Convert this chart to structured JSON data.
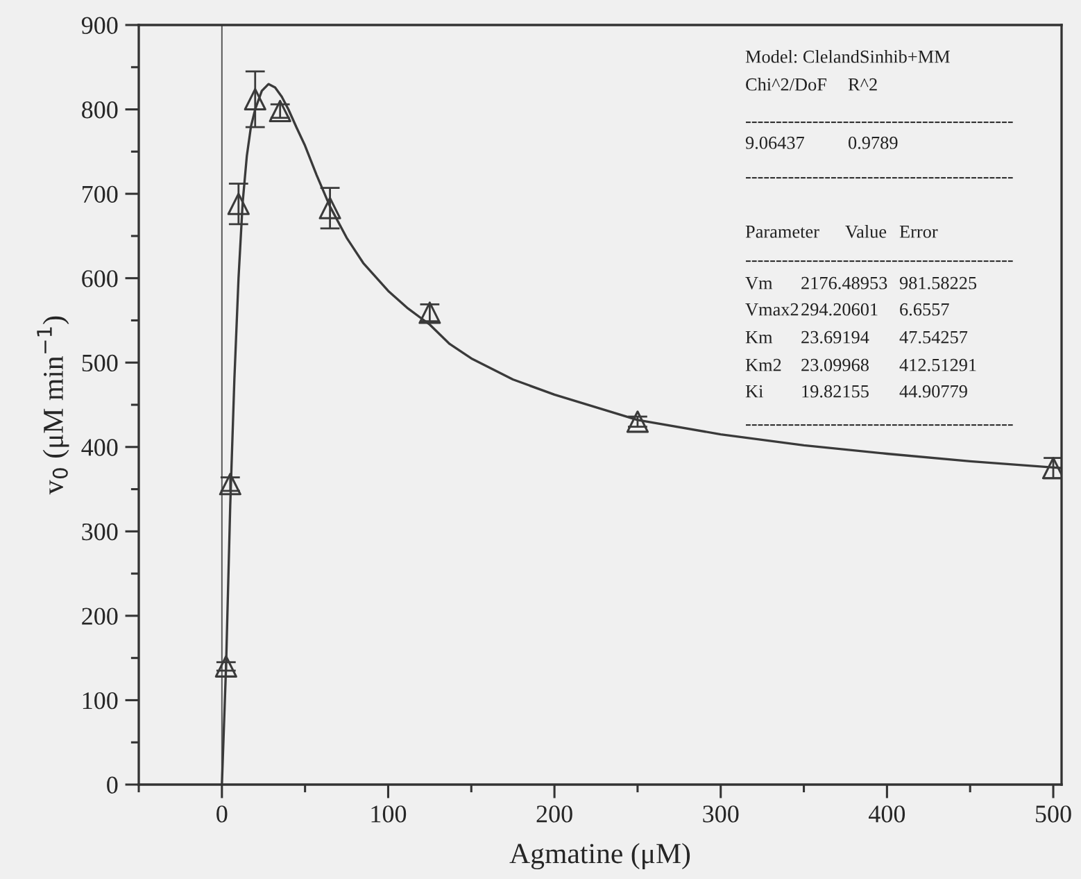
{
  "chart_data": {
    "type": "scatter",
    "xlabel": "Agmatine (μM)",
    "ylabel": "v$_{0}$ (μM min$^{−1}$)",
    "xlim": [
      -50,
      505
    ],
    "ylim": [
      0,
      900
    ],
    "xticks": [
      0,
      100,
      200,
      300,
      400,
      500
    ],
    "yticks": [
      0,
      100,
      200,
      300,
      400,
      500,
      600,
      700,
      800,
      900
    ],
    "grid": false,
    "legend": false,
    "series": [
      {
        "color": "#3a3a3a",
        "marker": "triangle",
        "x": [
          2.5,
          5,
          10,
          20,
          35,
          65,
          125,
          250,
          500
        ],
        "values": [
          140,
          356,
          688,
          812,
          798,
          683,
          559,
          430,
          375
        ],
        "errors": [
          5,
          8,
          24,
          33,
          8,
          24,
          10,
          6,
          12
        ]
      },
      {
        "type": "line",
        "color": "#3a3a3a",
        "marker": "none",
        "line_style": "solid",
        "x": [
          0,
          2.5,
          5,
          7.5,
          10,
          12.5,
          15,
          17.5,
          20,
          24,
          28,
          32,
          36,
          40,
          45,
          50,
          57,
          65,
          75,
          85,
          100,
          112,
          125,
          137,
          150,
          175,
          200,
          250,
          300,
          350,
          400,
          450,
          505
        ],
        "values": [
          0,
          140,
          330,
          480,
          600,
          690,
          745,
          780,
          800,
          822,
          830,
          826,
          815,
          800,
          778,
          757,
          722,
          685,
          648,
          618,
          585,
          564,
          545,
          522,
          505,
          480,
          462,
          432,
          415,
          402,
          392,
          383,
          375
        ]
      }
    ],
    "ref_lines": [
      {
        "axis": "x",
        "value": 0,
        "color": "#555555"
      }
    ],
    "annotations": [
      "Model: ClelandSinhib+MM",
      "Chi^2/DoF",
      "R^2",
      "--------------------------------------------",
      "9.06437",
      "0.9789",
      "--------------------------------------------",
      "Parameter",
      "Value",
      "Error",
      "--------------------------------------------",
      "Vm",
      "2176.48953",
      "981.58225",
      "Vmax2",
      "294.20601",
      "6.6557",
      "Km",
      "23.69194",
      "47.54257",
      "Km2",
      "23.09968",
      "412.51291",
      "Ki",
      "19.82155",
      "44.90779",
      "--------------------------------------------"
    ]
  }
}
